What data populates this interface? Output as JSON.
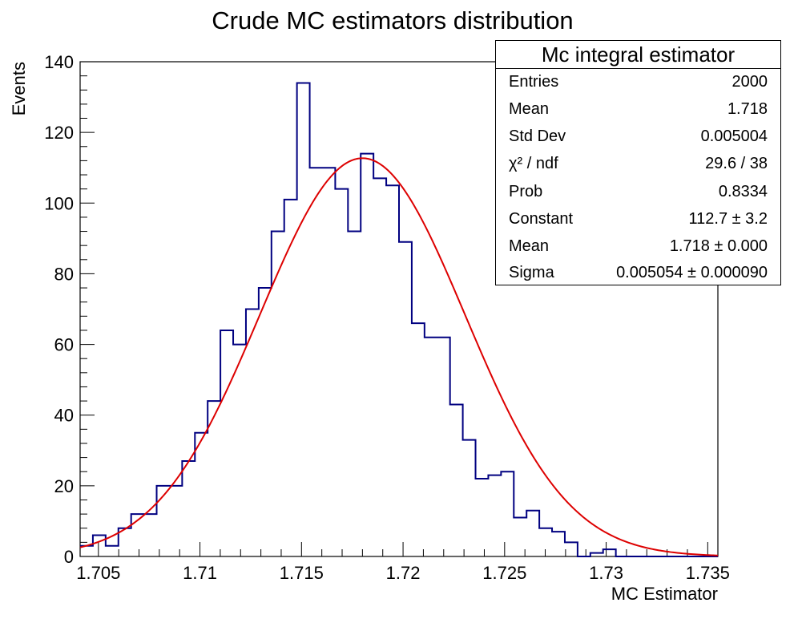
{
  "chart_data": {
    "type": "histogram",
    "title": "Crude MC estimators distribution",
    "xlabel": "MC Estimator",
    "ylabel": "Events",
    "xlim": [
      1.7041,
      1.7355
    ],
    "ylim": [
      0,
      140
    ],
    "xticks": [
      "1.705",
      "1.71",
      "1.715",
      "1.72",
      "1.725",
      "1.73",
      "1.735"
    ],
    "xtick_values": [
      1.705,
      1.71,
      1.715,
      1.72,
      1.725,
      1.73,
      1.735
    ],
    "yticks": [
      0,
      20,
      40,
      60,
      80,
      100,
      120,
      140
    ],
    "bin_edges_start": 1.7041,
    "bin_width": 0.000628,
    "counts": [
      3,
      6,
      3,
      8,
      12,
      12,
      20,
      20,
      27,
      35,
      44,
      64,
      60,
      70,
      76,
      92,
      101,
      134,
      110,
      110,
      104,
      92,
      114,
      107,
      105,
      89,
      66,
      62,
      62,
      43,
      33,
      22,
      23,
      24,
      11,
      13,
      8,
      7,
      4,
      0,
      1,
      2,
      0,
      0,
      0,
      0,
      0,
      0,
      0,
      0
    ],
    "fit": {
      "type": "gaussian",
      "constant": 112.7,
      "mean": 1.718,
      "sigma": 0.005054
    },
    "histogram_color": "#000080",
    "fit_color": "#dd0000",
    "grid": false
  },
  "stats": {
    "title": "Mc integral estimator",
    "rows": [
      {
        "label": "Entries",
        "value": "2000"
      },
      {
        "label": "Mean",
        "value": "1.718"
      },
      {
        "label": "Std Dev",
        "value": "0.005004"
      },
      {
        "label": "χ² / ndf",
        "value": "29.6 / 38"
      },
      {
        "label": "Prob",
        "value": "0.8334"
      },
      {
        "label": "Constant",
        "value": "112.7 ± 3.2"
      },
      {
        "label": "Mean",
        "value": "1.718 ± 0.000"
      },
      {
        "label": "Sigma",
        "value": "0.005054 ± 0.000090"
      }
    ]
  }
}
